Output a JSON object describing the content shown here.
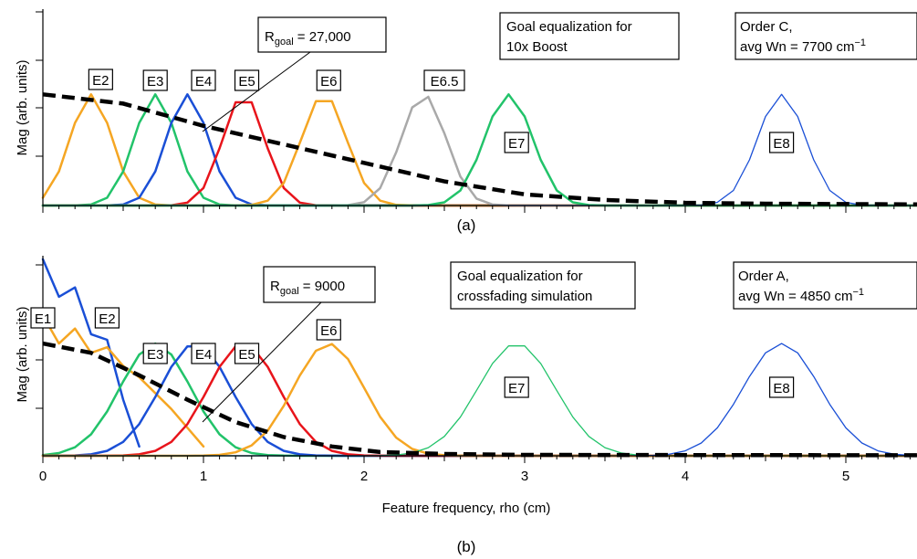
{
  "chart_data": [
    {
      "type": "line",
      "panel_label": "(a)",
      "ylabel": "Mag (arb. units)",
      "xlim": [
        0,
        5.5
      ],
      "ylim": [
        0,
        1.0
      ],
      "legend": "labels placed at peaks",
      "annotations": {
        "r_goal": {
          "prefix": "R",
          "sub": "goal",
          "value": " = 27,000"
        },
        "goal_box": [
          "Goal equalization for",
          "10x Boost"
        ],
        "order_box": {
          "line1": "Order C,",
          "line2": "avg Wn = 7700 cm",
          "sup": "−1"
        }
      },
      "series": [
        {
          "name": "E2",
          "color": "#f5a623",
          "width": 2.5,
          "center": 0.3,
          "sigma": 0.13,
          "amp": 0.6
        },
        {
          "name": "E3",
          "color": "#22c36a",
          "width": 2.5,
          "center": 0.7,
          "sigma": 0.13,
          "amp": 0.6
        },
        {
          "name": "E4",
          "color": "#1a4fd6",
          "width": 2.5,
          "center": 0.9,
          "sigma": 0.13,
          "amp": 0.6
        },
        {
          "name": "E5",
          "color": "#e8141b",
          "width": 2.5,
          "center": 1.25,
          "sigma": 0.13,
          "amp": 0.6
        },
        {
          "name": "E6",
          "color": "#f5a623",
          "width": 2.5,
          "center": 1.75,
          "sigma": 0.14,
          "amp": 0.6
        },
        {
          "name": "E6.5",
          "color": "#a9a9a9",
          "width": 2.5,
          "center": 2.37,
          "sigma": 0.14,
          "amp": 0.6
        },
        {
          "name": "E7",
          "color": "#22c36a",
          "width": 2.5,
          "center": 2.9,
          "sigma": 0.15,
          "amp": 0.6
        },
        {
          "name": "E8",
          "color": "#1a4fd6",
          "width": 1.3,
          "center": 4.6,
          "sigma": 0.15,
          "amp": 0.6
        }
      ],
      "goal_curve": {
        "name": "goal",
        "x": [
          0,
          0.5,
          1.0,
          1.5,
          2.0,
          2.5,
          3.0,
          3.5,
          4.0,
          4.5,
          5.0,
          5.5
        ],
        "y": [
          0.6,
          0.55,
          0.43,
          0.33,
          0.23,
          0.13,
          0.06,
          0.03,
          0.015,
          0.01,
          0.008,
          0.006
        ]
      }
    },
    {
      "type": "line",
      "panel_label": "(b)",
      "ylabel": "Mag (arb. units)",
      "xlabel": "Feature frequency, rho (cm)",
      "xlim": [
        0,
        5.5
      ],
      "ylim": [
        0,
        1.0
      ],
      "xticks": [
        0,
        1,
        2,
        3,
        4,
        5
      ],
      "legend": "labels placed at peaks",
      "annotations": {
        "r_goal": {
          "prefix": "R",
          "sub": "goal",
          "value": " = 9000"
        },
        "goal_box": [
          "Goal equalization for",
          "crossfading simulation"
        ],
        "order_box": {
          "line1": "Order A,",
          "line2": "avg Wn = 4850 cm",
          "sup": "−1"
        }
      },
      "series": [
        {
          "name": "E1",
          "color": "#1a4fd6",
          "width": 2.5
        },
        {
          "name": "E2",
          "color": "#f5a623",
          "width": 2.5
        },
        {
          "name": "E3",
          "color": "#22c36a",
          "width": 2.5,
          "center": 0.7,
          "sigma": 0.22,
          "amp": 0.6
        },
        {
          "name": "E4",
          "color": "#1a4fd6",
          "width": 2.5,
          "center": 0.95,
          "sigma": 0.22,
          "amp": 0.6
        },
        {
          "name": "E5",
          "color": "#e8141b",
          "width": 2.5,
          "center": 1.25,
          "sigma": 0.22,
          "amp": 0.6
        },
        {
          "name": "E6",
          "color": "#f5a623",
          "width": 2.5,
          "center": 1.78,
          "sigma": 0.22,
          "amp": 0.6
        },
        {
          "name": "E7",
          "color": "#22c36a",
          "width": 1.3,
          "center": 2.95,
          "sigma": 0.24,
          "amp": 0.6
        },
        {
          "name": "E8",
          "color": "#1a4fd6",
          "width": 1.3,
          "center": 4.6,
          "sigma": 0.24,
          "amp": 0.6
        }
      ],
      "e1_points": {
        "x": [
          0.0,
          0.1,
          0.2,
          0.3,
          0.4,
          0.5,
          0.6
        ],
        "y": [
          1.05,
          0.85,
          0.9,
          0.65,
          0.62,
          0.3,
          0.05
        ]
      },
      "e2_points": {
        "x": [
          0.0,
          0.1,
          0.2,
          0.3,
          0.4,
          0.5,
          0.6,
          0.8,
          1.0
        ],
        "y": [
          0.75,
          0.6,
          0.68,
          0.55,
          0.58,
          0.48,
          0.42,
          0.25,
          0.05
        ]
      },
      "goal_curve": {
        "name": "goal",
        "x": [
          0,
          0.3,
          0.6,
          0.9,
          1.2,
          1.5,
          1.8,
          2.1,
          2.5,
          3.0,
          4.0,
          5.5
        ],
        "y": [
          0.6,
          0.55,
          0.43,
          0.3,
          0.18,
          0.1,
          0.05,
          0.02,
          0.01,
          0.005,
          0.004,
          0.003
        ]
      }
    }
  ]
}
